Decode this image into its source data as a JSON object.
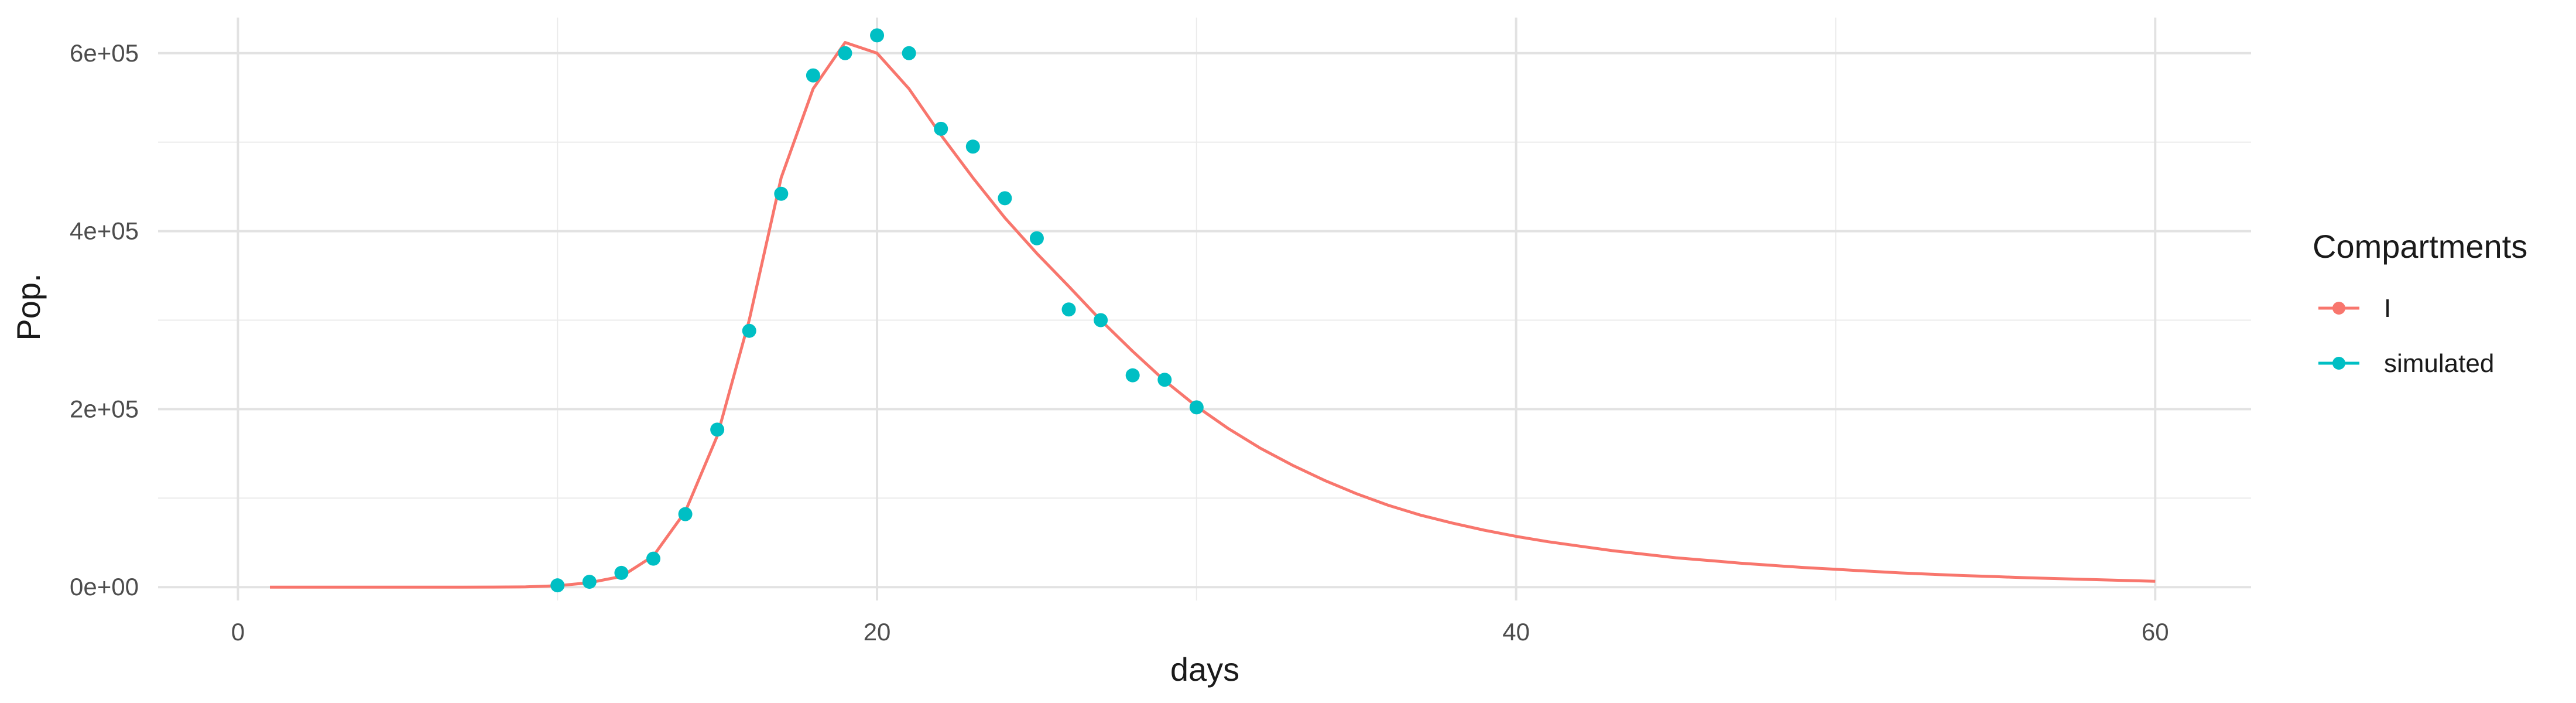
{
  "chart_data": {
    "type": "line",
    "xlabel": "days",
    "ylabel": "Pop.",
    "xlim": [
      -2.5,
      63
    ],
    "ylim": [
      -15000,
      640000
    ],
    "x_ticks": [
      0,
      20,
      40,
      60
    ],
    "x_tick_labels": [
      "0",
      "20",
      "40",
      "60"
    ],
    "y_ticks": [
      0,
      200000,
      400000,
      600000
    ],
    "y_tick_labels": [
      "0e+00",
      "2e+05",
      "4e+05",
      "6e+05"
    ],
    "grid": true,
    "legend": {
      "title": "Compartments",
      "position": "right"
    },
    "series": [
      {
        "name": "I",
        "kind": "line",
        "color": "#F8766D",
        "x": [
          1,
          2,
          3,
          4,
          5,
          6,
          7,
          8,
          9,
          10,
          11,
          12,
          13,
          14,
          15,
          16,
          17,
          18,
          19,
          20,
          21,
          22,
          23,
          24,
          25,
          26,
          27,
          28,
          29,
          30,
          31,
          32,
          33,
          34,
          35,
          36,
          37,
          38,
          39,
          40,
          41,
          42,
          43,
          44,
          45,
          46,
          47,
          48,
          49,
          50,
          51,
          52,
          53,
          54,
          55,
          56,
          57,
          58,
          59,
          60
        ],
        "y": [
          0,
          0,
          0,
          0,
          0,
          0,
          0,
          100,
          300,
          1500,
          5000,
          12000,
          35000,
          85000,
          170000,
          300000,
          460000,
          560000,
          612000,
          600000,
          560000,
          508000,
          460000,
          415000,
          375000,
          338000,
          300000,
          265000,
          232000,
          203000,
          178000,
          156000,
          137000,
          120000,
          105000,
          92000,
          81000,
          72000,
          64000,
          57000,
          51000,
          46000,
          41000,
          37000,
          33000,
          30000,
          27000,
          24500,
          22000,
          20000,
          18000,
          16000,
          14500,
          13000,
          11800,
          10500,
          9500,
          8500,
          7500,
          6500
        ]
      },
      {
        "name": "simulated",
        "kind": "point",
        "color": "#00BFC4",
        "x": [
          10,
          11,
          12,
          13,
          14,
          15,
          16,
          17,
          18,
          19,
          20,
          21,
          22,
          23,
          24,
          25,
          26,
          27,
          28,
          29,
          30
        ],
        "y": [
          2000,
          6000,
          16000,
          32000,
          82000,
          177000,
          288000,
          442000,
          575000,
          600000,
          620000,
          600000,
          515000,
          495000,
          437000,
          392000,
          312000,
          300000,
          238000,
          233000,
          202000
        ]
      }
    ]
  }
}
